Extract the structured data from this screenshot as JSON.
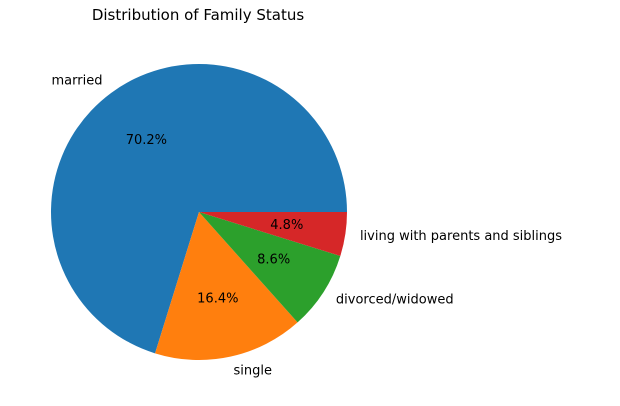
{
  "chart_data": {
    "type": "pie",
    "title": "Distribution of Family Status",
    "slices": [
      {
        "label": "married",
        "value": 70.2,
        "pct_label": "70.2%",
        "color": "#1f77b4"
      },
      {
        "label": "single",
        "value": 16.4,
        "pct_label": "16.4%",
        "color": "#ff7f0e"
      },
      {
        "label": "divorced/widowed",
        "value": 8.6,
        "pct_label": "8.6%",
        "color": "#2ca02c"
      },
      {
        "label": "living with parents and siblings",
        "value": 4.8,
        "pct_label": "4.8%",
        "color": "#d62728"
      }
    ],
    "start_angle_deg": 0,
    "direction": "counterclockwise",
    "legend": "none"
  }
}
